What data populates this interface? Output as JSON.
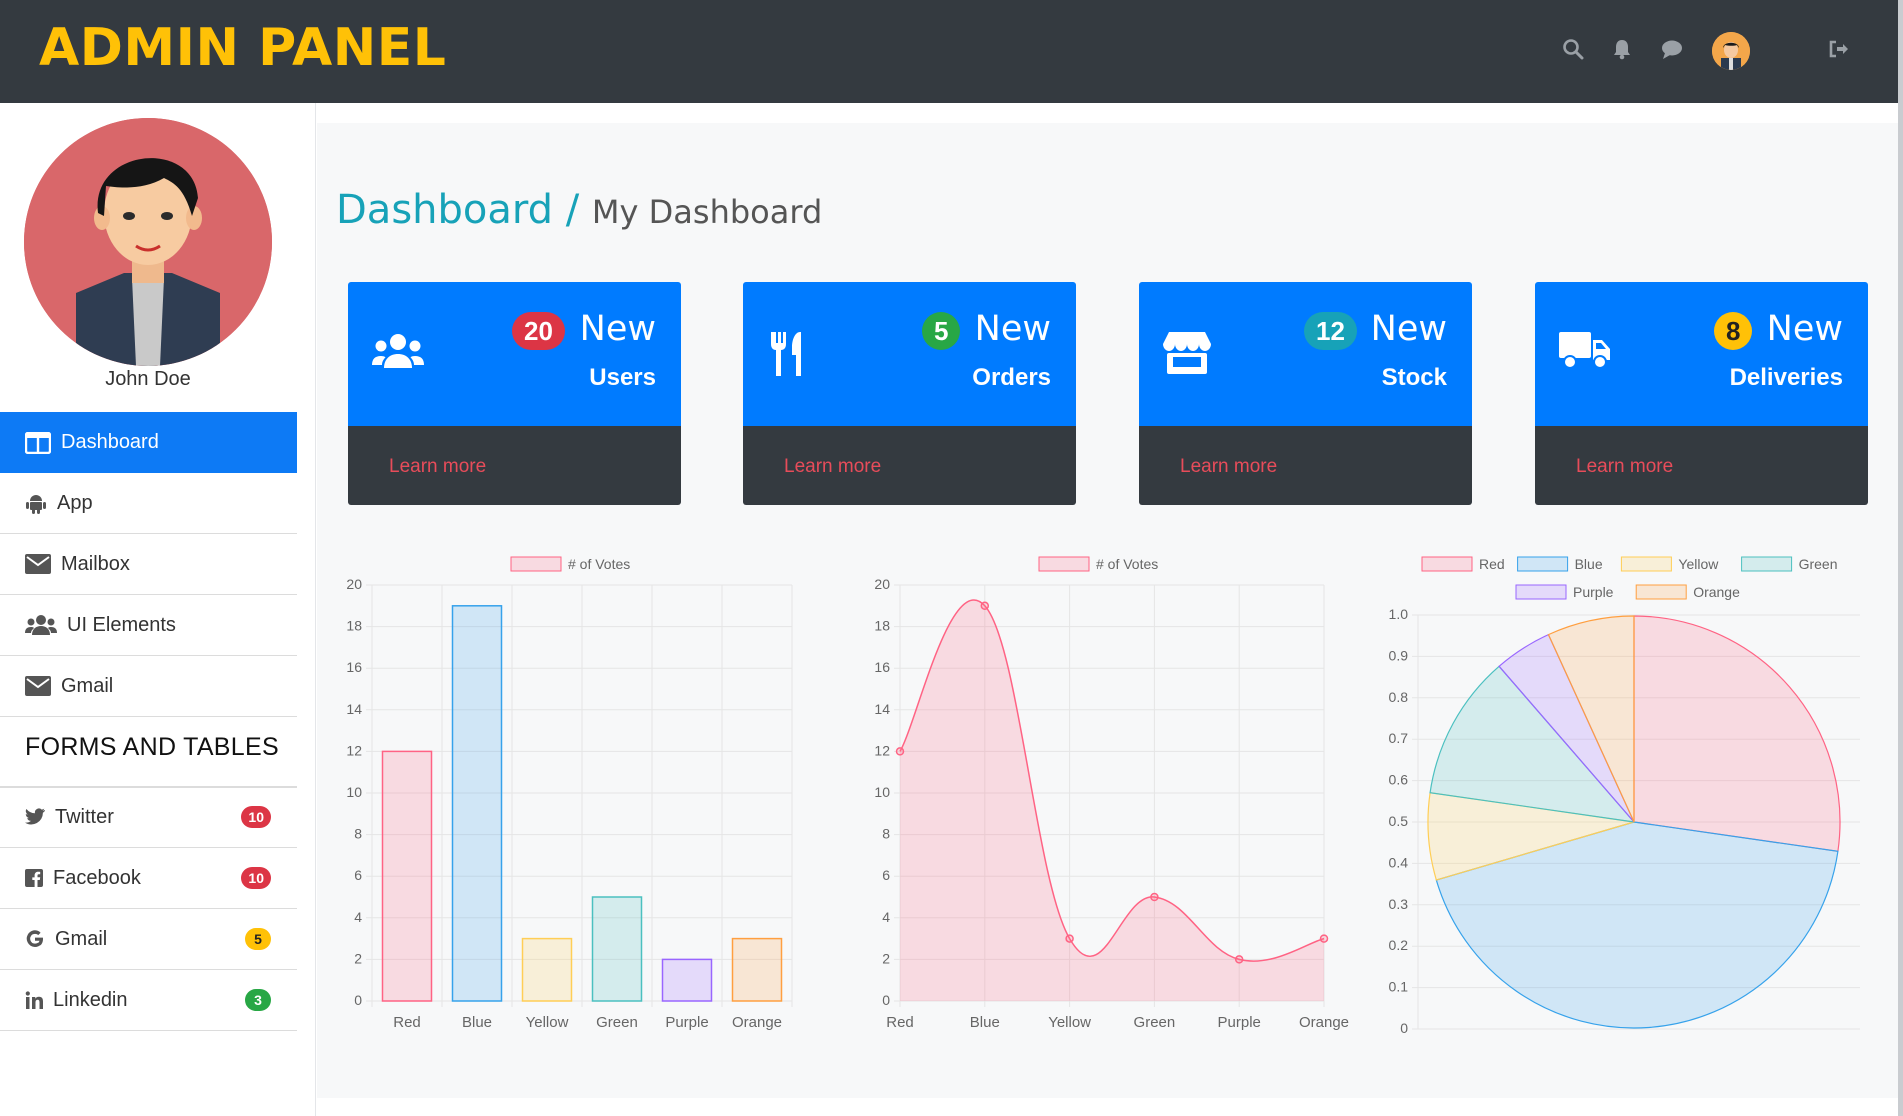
{
  "header": {
    "brand": "ADMIN PANEL"
  },
  "profile": {
    "name": "John Doe"
  },
  "sidebar": {
    "items": [
      {
        "label": "Dashboard"
      },
      {
        "label": "App"
      },
      {
        "label": "Mailbox"
      },
      {
        "label": "UI Elements"
      },
      {
        "label": "Gmail"
      }
    ],
    "section_title": "FORMS AND TABLES",
    "social": [
      {
        "label": "Twitter",
        "badge": "10"
      },
      {
        "label": "Facebook",
        "badge": "10"
      },
      {
        "label": "Gmail",
        "badge": "5"
      },
      {
        "label": "Linkedin",
        "badge": "3"
      }
    ]
  },
  "breadcrumb": {
    "main": "Dashboard /",
    "sub": "My Dashboard"
  },
  "cards": [
    {
      "count": "20",
      "new": "New",
      "label": "Users",
      "link": "Learn more",
      "badge_color": "#dc3545"
    },
    {
      "count": "5",
      "new": "New",
      "label": "Orders",
      "link": "Learn more",
      "badge_color": "#28a745"
    },
    {
      "count": "12",
      "new": "New",
      "label": "Stock",
      "link": "Learn more",
      "badge_color": "#17a2b8"
    },
    {
      "count": "8",
      "new": "New",
      "label": "Deliveries",
      "link": "Learn more",
      "badge_color": "#ffc107"
    }
  ],
  "chart_data": [
    {
      "type": "bar",
      "categories": [
        "Red",
        "Blue",
        "Yellow",
        "Green",
        "Purple",
        "Orange"
      ],
      "series": [
        {
          "name": "# of Votes",
          "values": [
            12,
            19,
            3,
            5,
            2,
            3
          ]
        }
      ],
      "ylim": [
        0,
        20
      ],
      "yticks": [
        0,
        2,
        4,
        6,
        8,
        10,
        12,
        14,
        16,
        18,
        20
      ],
      "legend": "top"
    },
    {
      "type": "area",
      "categories": [
        "Red",
        "Blue",
        "Yellow",
        "Green",
        "Purple",
        "Orange"
      ],
      "series": [
        {
          "name": "# of Votes",
          "values": [
            12,
            19,
            3,
            5,
            2,
            3
          ]
        }
      ],
      "ylim": [
        0,
        20
      ],
      "yticks": [
        0,
        2,
        4,
        6,
        8,
        10,
        12,
        14,
        16,
        18,
        20
      ],
      "legend": "top"
    },
    {
      "type": "pie",
      "categories": [
        "Red",
        "Blue",
        "Yellow",
        "Green",
        "Purple",
        "Orange"
      ],
      "values": [
        12,
        19,
        3,
        5,
        2,
        3
      ],
      "yticks": [
        "0",
        "0.1",
        "0.2",
        "0.3",
        "0.4",
        "0.5",
        "0.6",
        "0.7",
        "0.8",
        "0.9",
        "1.0"
      ],
      "legend": "top"
    }
  ],
  "palette": {
    "fills": [
      "rgba(255,99,132,0.2)",
      "rgba(54,162,235,0.2)",
      "rgba(255,206,86,0.2)",
      "rgba(75,192,192,0.2)",
      "rgba(153,102,255,0.2)",
      "rgba(255,159,64,0.2)"
    ],
    "strokes": [
      "#ff6384",
      "#36a2eb",
      "#ffce56",
      "#4bc0c0",
      "#9966ff",
      "#ff9f40"
    ]
  }
}
